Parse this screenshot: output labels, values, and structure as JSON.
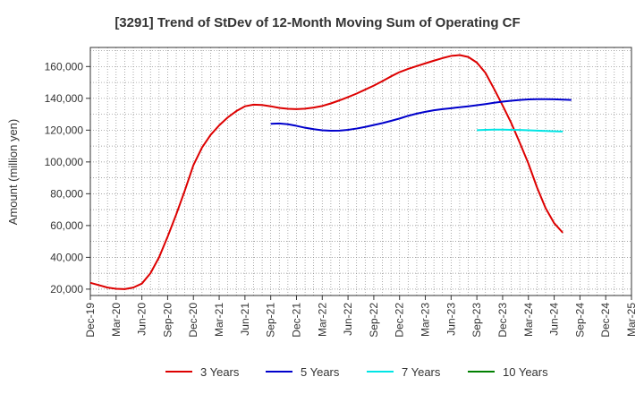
{
  "chart_data": {
    "type": "line",
    "title": "[3291]  Trend of StDev of 12-Month Moving Sum of Operating CF",
    "ylabel": "Amount (million yen)",
    "xlabel": "",
    "ylim": [
      16000,
      172000
    ],
    "grid": true,
    "legend_position": "bottom",
    "x_ticks": [
      "Dec-19",
      "Mar-20",
      "Jun-20",
      "Sep-20",
      "Dec-20",
      "Mar-21",
      "Jun-21",
      "Sep-21",
      "Dec-21",
      "Mar-22",
      "Jun-22",
      "Sep-22",
      "Dec-22",
      "Mar-23",
      "Jun-23",
      "Sep-23",
      "Dec-23",
      "Mar-24",
      "Jun-24",
      "Sep-24",
      "Dec-24",
      "Mar-25"
    ],
    "y_ticks": [
      20000,
      40000,
      60000,
      80000,
      100000,
      120000,
      140000,
      160000
    ],
    "y_tick_labels": [
      "20,000",
      "40,000",
      "60,000",
      "80,000",
      "100,000",
      "120,000",
      "140,000",
      "160,000"
    ],
    "series": [
      {
        "name": "3 Years",
        "color": "#dd0000",
        "start_index": 0,
        "values": [
          24000,
          22500,
          21000,
          20200,
          20000,
          21000,
          23500,
          30000,
          40000,
          53000,
          67000,
          82000,
          98000,
          109000,
          117000,
          123000,
          128000,
          132000,
          135000,
          136000,
          135800,
          135000,
          134000,
          133400,
          133200,
          133500,
          134200,
          135200,
          136800,
          138700,
          140800,
          143000,
          145500,
          148000,
          150800,
          153800,
          156500,
          158500,
          160300,
          162000,
          163700,
          165300,
          166700,
          167200,
          166000,
          162500,
          156000,
          146000,
          135500,
          124500,
          112000,
          99000,
          84000,
          71000,
          61500,
          55500
        ]
      },
      {
        "name": "5 Years",
        "color": "#0000cc",
        "start_index": 21,
        "values": [
          124000,
          124200,
          123700,
          122700,
          121500,
          120600,
          119900,
          119600,
          119700,
          120200,
          121000,
          122000,
          123200,
          124400,
          125800,
          127300,
          129000,
          130400,
          131500,
          132500,
          133200,
          133800,
          134400,
          135000,
          135700,
          136400,
          137200,
          137900,
          138500,
          139000,
          139300,
          139500,
          139500,
          139400,
          139200,
          139000
        ]
      },
      {
        "name": "7 Years",
        "color": "#00e5e5",
        "start_index": 45,
        "values": [
          120000,
          120200,
          120300,
          120300,
          120200,
          120100,
          119900,
          119700,
          119500,
          119300,
          119100
        ]
      },
      {
        "name": "10 Years",
        "color": "#008000",
        "start_index": 0,
        "values": []
      }
    ]
  }
}
